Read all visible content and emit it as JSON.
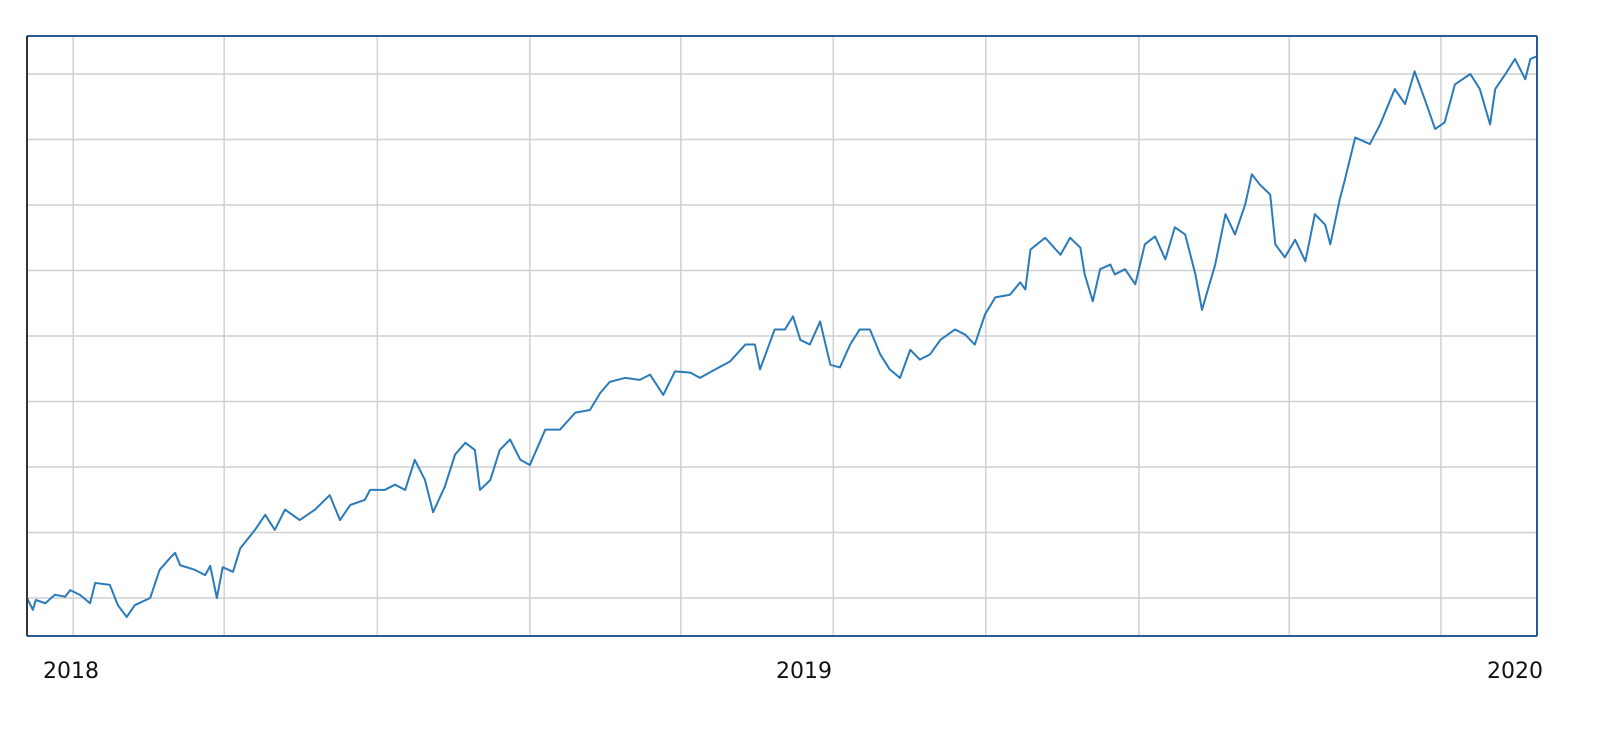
{
  "chart_data": {
    "type": "line",
    "color": "#2b7bba",
    "xlim": [
      2017.94,
      2020.0
    ],
    "xticks": [
      2018,
      2019,
      2020
    ],
    "xgrid": [
      2018.003,
      2018.209,
      2018.418,
      2018.626,
      2018.832,
      2019.04,
      2019.248,
      2019.457,
      2019.662,
      2019.869
    ],
    "ylim": [
      0.42,
      9.58
    ],
    "yticks": [
      1,
      2,
      3,
      4,
      5,
      6,
      7,
      8,
      9
    ],
    "grid": true,
    "x": [
      2017.94,
      2017.948,
      2017.952,
      2017.965,
      2017.978,
      2017.992,
      2017.999,
      2018.012,
      2018.026,
      2018.033,
      2018.053,
      2018.064,
      2018.076,
      2018.087,
      2018.108,
      2018.121,
      2018.135,
      2018.142,
      2018.149,
      2018.169,
      2018.183,
      2018.19,
      2018.199,
      2018.207,
      2018.221,
      2018.231,
      2018.251,
      2018.265,
      2018.278,
      2018.292,
      2018.312,
      2018.333,
      2018.353,
      2018.367,
      2018.381,
      2018.401,
      2018.408,
      2018.428,
      2018.442,
      2018.456,
      2018.469,
      2018.483,
      2018.494,
      2018.51,
      2018.524,
      2018.538,
      2018.551,
      2018.558,
      2018.572,
      2018.585,
      2018.599,
      2018.613,
      2018.626,
      2018.647,
      2018.667,
      2018.688,
      2018.708,
      2018.722,
      2018.735,
      2018.756,
      2018.776,
      2018.79,
      2018.808,
      2018.824,
      2018.845,
      2018.858,
      2018.879,
      2018.899,
      2018.92,
      2018.933,
      2018.94,
      2018.96,
      2018.974,
      2018.985,
      2018.995,
      2019.008,
      2019.022,
      2019.036,
      2019.049,
      2019.063,
      2019.076,
      2019.09,
      2019.104,
      2019.117,
      2019.131,
      2019.145,
      2019.158,
      2019.172,
      2019.186,
      2019.206,
      2019.22,
      2019.233,
      2019.247,
      2019.261,
      2019.281,
      2019.295,
      2019.302,
      2019.309,
      2019.329,
      2019.35,
      2019.363,
      2019.377,
      2019.383,
      2019.394,
      2019.404,
      2019.418,
      2019.424,
      2019.438,
      2019.452,
      2019.465,
      2019.479,
      2019.493,
      2019.506,
      2019.52,
      2019.534,
      2019.543,
      2019.561,
      2019.575,
      2019.588,
      2019.602,
      2019.611,
      2019.622,
      2019.636,
      2019.643,
      2019.656,
      2019.67,
      2019.684,
      2019.697,
      2019.711,
      2019.718,
      2019.731,
      2019.738,
      2019.752,
      2019.772,
      2019.786,
      2019.806,
      2019.82,
      2019.833,
      2019.847,
      2019.861,
      2019.874,
      2019.888,
      2019.909,
      2019.922,
      2019.936,
      2019.943,
      2019.957,
      2019.97,
      2019.984,
      2019.991,
      2020.0
    ],
    "values": [
      1.0,
      0.82,
      0.97,
      0.92,
      1.05,
      1.02,
      1.12,
      1.05,
      0.92,
      1.23,
      1.2,
      0.89,
      0.71,
      0.89,
      1.0,
      1.43,
      1.61,
      1.69,
      1.5,
      1.43,
      1.35,
      1.49,
      1.0,
      1.47,
      1.4,
      1.76,
      2.04,
      2.27,
      2.04,
      2.35,
      2.19,
      2.35,
      2.57,
      2.19,
      2.42,
      2.5,
      2.65,
      2.65,
      2.73,
      2.65,
      3.11,
      2.8,
      2.31,
      2.7,
      3.19,
      3.37,
      3.26,
      2.65,
      2.8,
      3.26,
      3.42,
      3.11,
      3.03,
      3.57,
      3.57,
      3.83,
      3.87,
      4.13,
      4.3,
      4.36,
      4.33,
      4.41,
      4.1,
      4.46,
      4.44,
      4.36,
      4.49,
      4.61,
      4.87,
      4.87,
      4.49,
      5.1,
      5.1,
      5.3,
      4.94,
      4.87,
      5.22,
      4.56,
      4.52,
      4.87,
      5.1,
      5.1,
      4.72,
      4.49,
      4.36,
      4.79,
      4.64,
      4.72,
      4.94,
      5.1,
      5.02,
      4.87,
      5.33,
      5.59,
      5.63,
      5.82,
      5.71,
      6.32,
      6.5,
      6.24,
      6.5,
      6.35,
      5.94,
      5.53,
      6.02,
      6.09,
      5.94,
      6.02,
      5.79,
      6.4,
      6.52,
      6.17,
      6.66,
      6.55,
      5.94,
      5.4,
      6.09,
      6.86,
      6.55,
      7.01,
      7.47,
      7.31,
      7.16,
      6.4,
      6.2,
      6.47,
      6.14,
      6.86,
      6.7,
      6.4,
      7.09,
      7.39,
      8.03,
      7.93,
      8.23,
      8.77,
      8.54,
      9.04,
      8.61,
      8.16,
      8.26,
      8.84,
      9.0,
      8.77,
      8.23,
      8.77,
      9.0,
      9.23,
      8.92,
      9.23,
      9.27
    ]
  }
}
